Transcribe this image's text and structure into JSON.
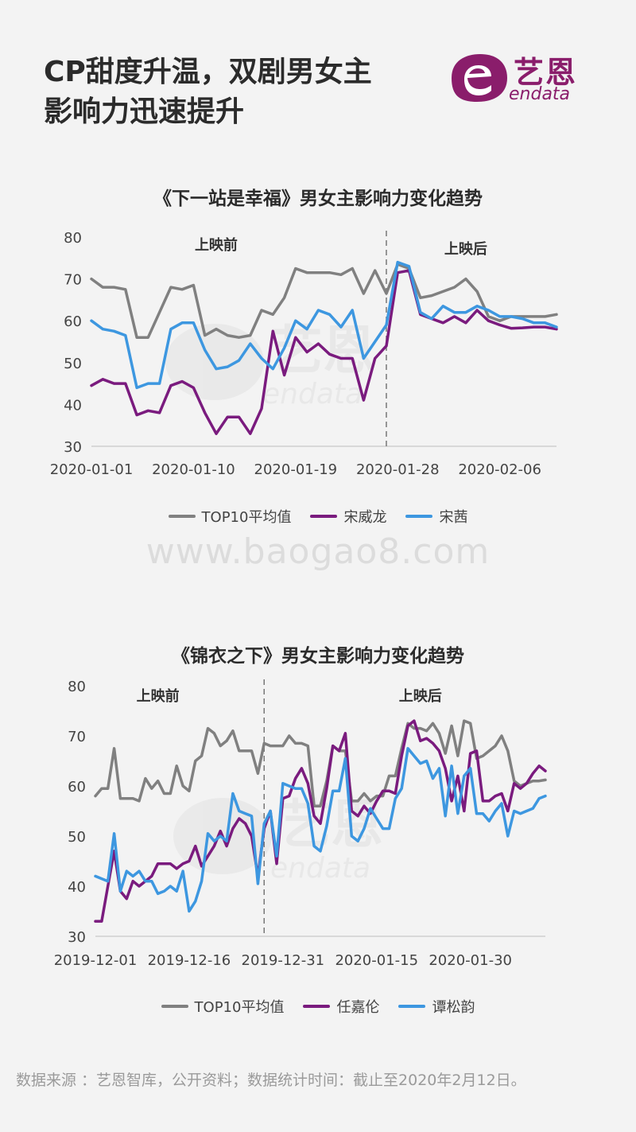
{
  "title": {
    "line1": "CP甜度升温，双剧男女主",
    "line2": "影响力迅速提升"
  },
  "logo": {
    "cn": "艺恩",
    "en": "endata"
  },
  "watermark": {
    "site": "www.baogao8.com",
    "cn": "艺恩",
    "en": "endata"
  },
  "footer": "数据来源 ：艺恩智库，公开资料；数据统计时间：截止至2020年2月12日。",
  "colors": {
    "avg": "#808080",
    "male": "#7a1b7e",
    "female": "#3d97e0"
  },
  "chart_data": [
    {
      "type": "line",
      "title": "《下一站是幸福》男女主影响力变化趋势",
      "x_start": "2020-01-01",
      "x_ticks": [
        "2020-01-01",
        "2020-01-10",
        "2020-01-19",
        "2020-01-28",
        "2020-02-06"
      ],
      "ylim": [
        30,
        80
      ],
      "y_ticks": [
        30,
        40,
        50,
        60,
        70,
        80
      ],
      "divider_x": "2020-01-27",
      "annotations": [
        {
          "text": "上映前",
          "x": "2020-01-12",
          "y": 77
        },
        {
          "text": "上映后",
          "x": "2020-02-03",
          "y": 76
        }
      ],
      "legend": [
        "TOP10平均值",
        "宋威龙",
        "宋茜"
      ],
      "series": [
        {
          "name": "TOP10平均值",
          "color": "#808080",
          "values": [
            70,
            68,
            68,
            67.5,
            56,
            56,
            62,
            68,
            67.5,
            68.5,
            56.5,
            58,
            56.5,
            56,
            56.5,
            62.5,
            61.5,
            65.5,
            72.5,
            71.5,
            71.5,
            71.5,
            71,
            72.5,
            66.5,
            72,
            66.5,
            73.5,
            72.5,
            65.5,
            66,
            67,
            68,
            70,
            67,
            61,
            60,
            61,
            61,
            61,
            61,
            61.5
          ]
        },
        {
          "name": "宋威龙",
          "color": "#7a1b7e",
          "values": [
            44.5,
            46,
            45,
            45,
            37.5,
            38.5,
            38,
            44.5,
            45.5,
            44,
            38,
            33,
            37,
            37,
            33,
            39,
            57.5,
            47,
            56,
            52.5,
            54.5,
            52,
            51,
            51,
            41,
            51,
            54,
            71.5,
            72,
            61.5,
            60.5,
            59.5,
            61,
            59.5,
            62.5,
            60,
            59,
            58.2,
            58.3,
            58.5,
            58.5,
            58
          ]
        },
        {
          "name": "宋茜",
          "color": "#3d97e0",
          "values": [
            60,
            58,
            57.5,
            56.5,
            44,
            45,
            45,
            58,
            59.5,
            59.5,
            53,
            48.5,
            49,
            50.5,
            54.5,
            51,
            48.5,
            53.5,
            60,
            58,
            62.5,
            61.5,
            58.5,
            62.5,
            51,
            55,
            59,
            74,
            73,
            62,
            60.5,
            63.5,
            62,
            62,
            63.5,
            62.5,
            61,
            61,
            60.5,
            59.5,
            59.5,
            58.5
          ]
        }
      ]
    },
    {
      "type": "line",
      "title": "《锦衣之下》男女主影响力变化趋势",
      "x_start": "2019-12-01",
      "x_ticks": [
        "2019-12-01",
        "2019-12-16",
        "2019-12-31",
        "2020-01-15",
        "2020-01-30"
      ],
      "ylim": [
        30,
        80
      ],
      "y_ticks": [
        30,
        40,
        50,
        60,
        70,
        80
      ],
      "divider_x": "2019-12-28",
      "annotations": [
        {
          "text": "上映前",
          "x": "2019-12-11",
          "y": 77
        },
        {
          "text": "上映后",
          "x": "2020-01-22",
          "y": 77
        }
      ],
      "legend": [
        "TOP10平均值",
        "任嘉伦",
        "谭松韵"
      ],
      "series": [
        {
          "name": "TOP10平均值",
          "color": "#808080",
          "values": [
            58,
            59.5,
            59.5,
            67.5,
            57.5,
            57.5,
            57.5,
            57,
            61.5,
            59.5,
            61,
            58.5,
            58.5,
            64,
            60,
            59,
            65,
            66,
            71.5,
            70.5,
            68,
            69,
            71,
            67,
            67,
            67,
            62.5,
            68.5,
            68,
            68,
            68,
            70,
            68.5,
            68.5,
            68,
            56,
            56,
            61,
            68,
            67,
            67,
            57,
            57,
            58.5,
            57,
            58,
            58,
            62,
            62,
            67.5,
            72.5,
            71.5,
            71.5,
            71,
            72.5,
            70.5,
            66.5,
            72,
            66,
            73,
            72.5,
            65.5,
            66,
            67,
            68,
            70,
            67,
            61,
            60,
            60.5,
            61,
            61,
            61.2
          ]
        },
        {
          "name": "任嘉伦",
          "color": "#7a1b7e",
          "values": [
            33,
            33,
            40,
            47,
            39,
            37.5,
            41,
            40,
            41,
            42,
            44.5,
            44.5,
            44.5,
            43.5,
            44.5,
            45,
            48,
            44,
            46,
            48,
            51,
            48,
            51.5,
            53.5,
            52.5,
            50,
            42,
            51.5,
            55,
            44.5,
            57.5,
            58,
            61.5,
            63.5,
            60.5,
            54,
            52.5,
            59.5,
            68,
            67,
            70.5,
            55,
            54,
            56,
            54.5,
            57,
            59,
            59,
            58.5,
            66,
            72,
            73,
            69,
            69.5,
            68.5,
            67,
            63.5,
            57,
            62,
            55,
            66.5,
            67,
            57,
            57,
            58,
            58.5,
            55,
            60.5,
            59.5,
            60.5,
            62.5,
            64,
            63
          ]
        },
        {
          "name": "谭松韵",
          "color": "#3d97e0",
          "values": [
            42,
            41.5,
            41,
            50.5,
            39,
            43,
            42,
            43,
            41,
            41,
            38.5,
            39,
            40,
            39,
            43,
            35,
            37,
            41,
            50.5,
            49,
            50,
            49,
            58.5,
            55,
            54.5,
            54,
            40.5,
            52.5,
            55,
            46,
            60.5,
            60,
            59.5,
            59.5,
            56.5,
            48,
            47,
            52,
            59,
            59,
            65.5,
            50,
            49,
            51.5,
            55.5,
            53.5,
            51.5,
            51.5,
            57.5,
            59.5,
            67.5,
            66,
            64.5,
            65,
            61.5,
            63.5,
            54,
            64,
            54.5,
            62,
            63.5,
            54.5,
            54.5,
            53,
            55,
            56.5,
            50,
            55,
            54.5,
            55,
            55.5,
            57.5,
            58
          ]
        }
      ]
    }
  ]
}
